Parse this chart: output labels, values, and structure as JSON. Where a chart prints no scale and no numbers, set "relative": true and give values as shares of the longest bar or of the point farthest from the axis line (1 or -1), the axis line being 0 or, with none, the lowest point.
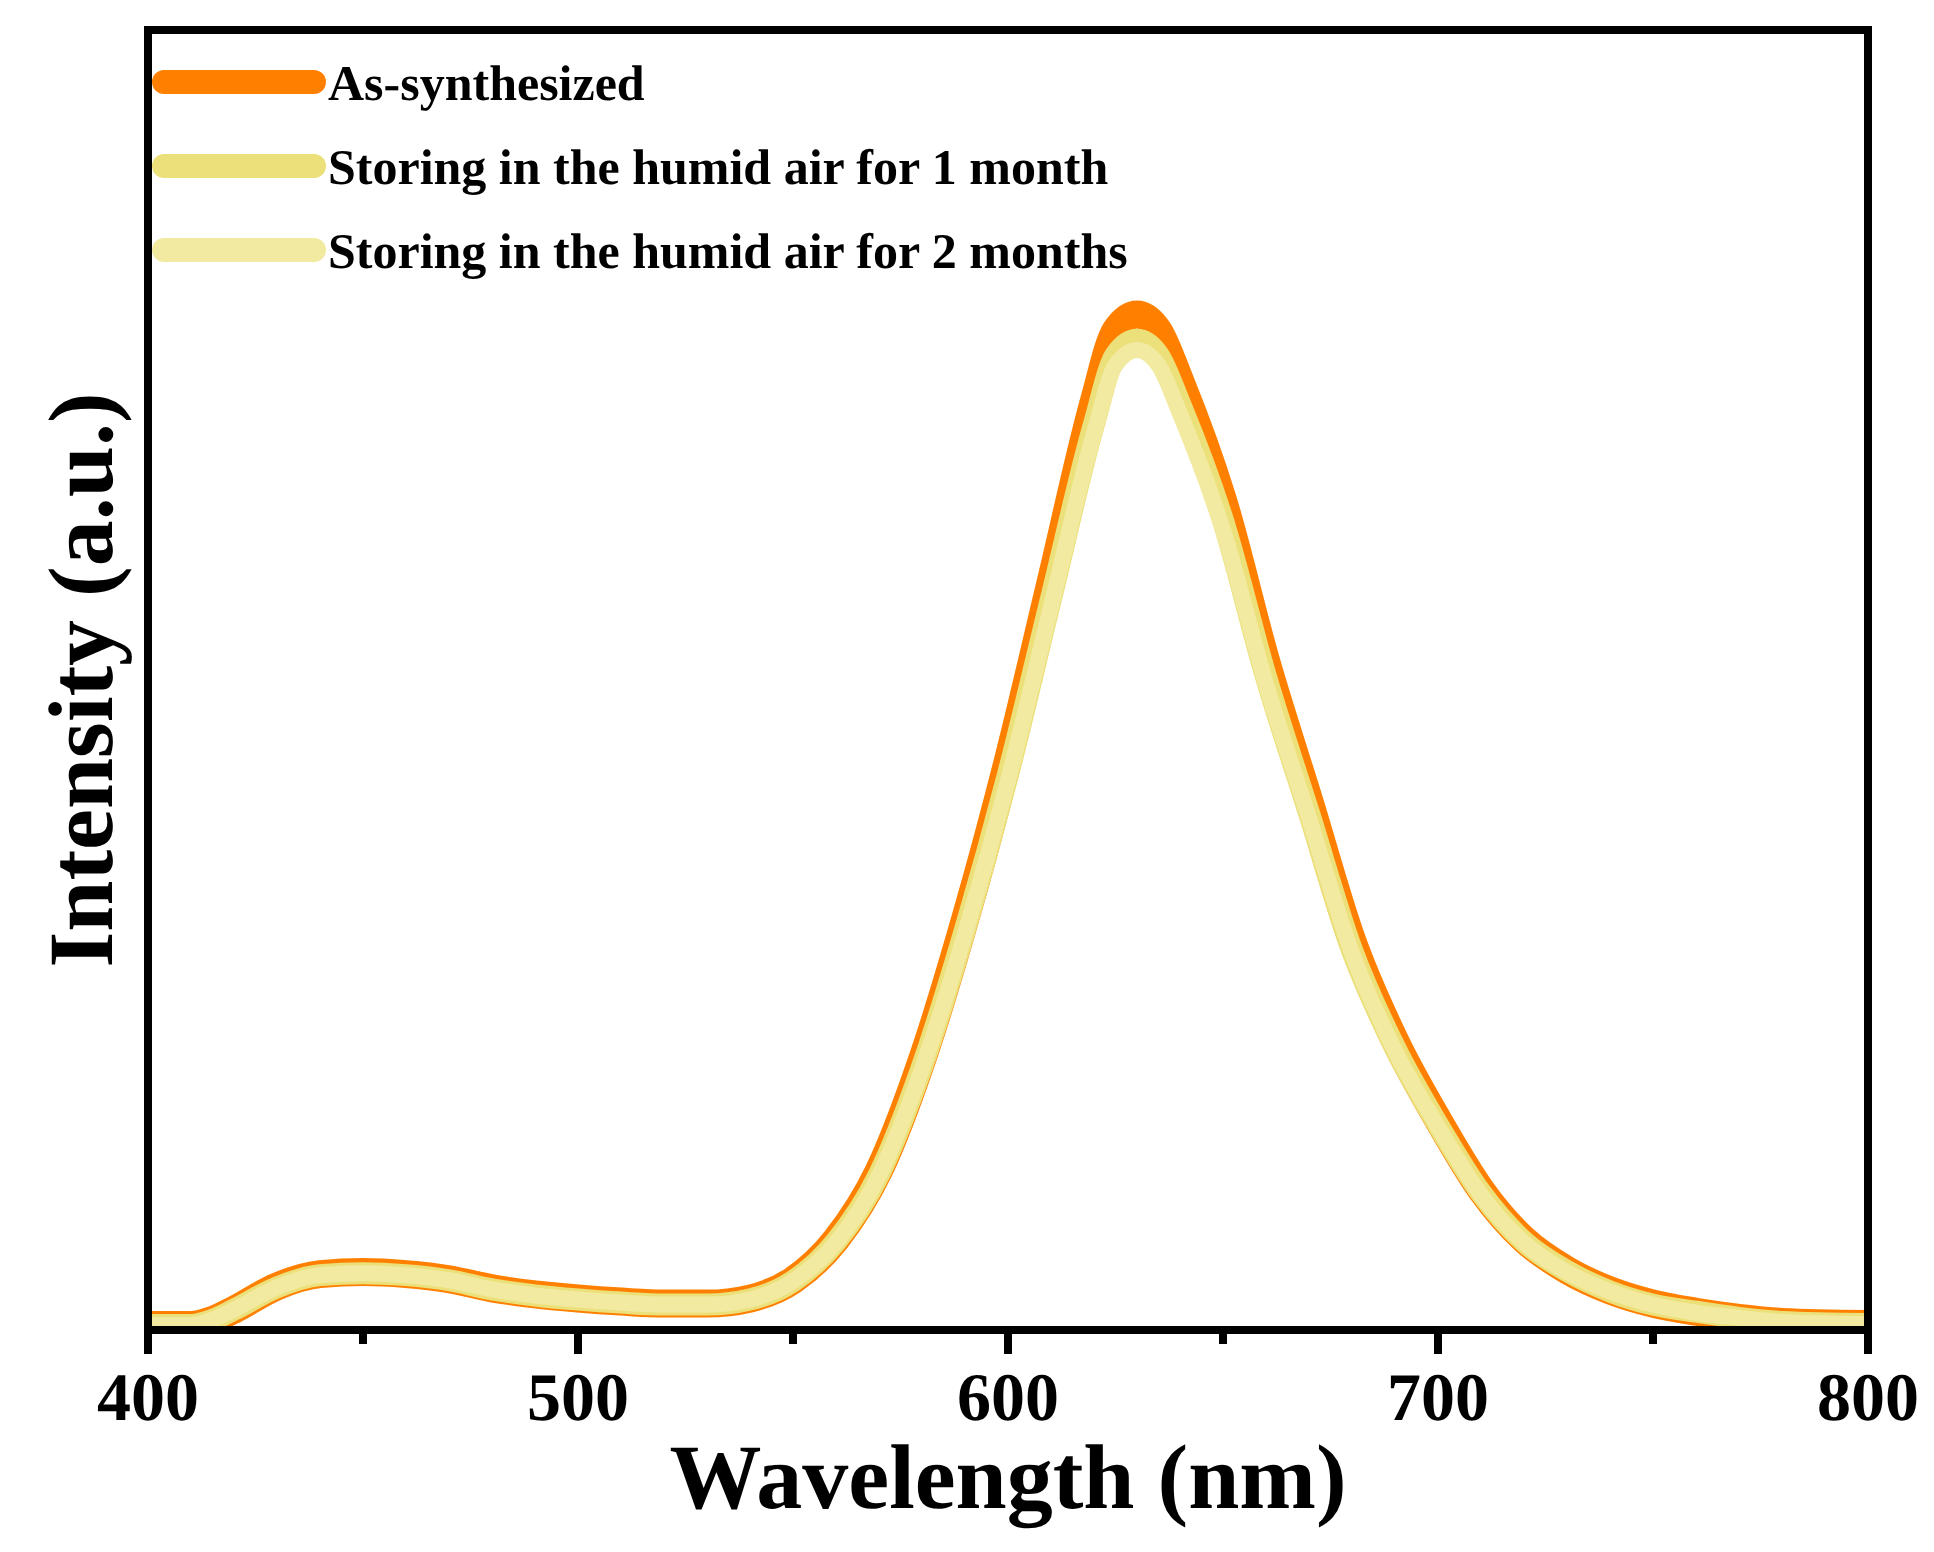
{
  "chart_data": {
    "type": "line",
    "relative": true,
    "xlabel": "Wavelength (nm)",
    "ylabel": "Intensity (a.u.)",
    "xlim": [
      400,
      800
    ],
    "xticks": [
      400,
      500,
      600,
      700,
      800
    ],
    "legend": "top left",
    "line_style": "solid",
    "x": [
      400,
      410,
      415,
      420,
      430,
      440,
      450,
      460,
      470,
      480,
      490,
      500,
      510,
      520,
      530,
      540,
      550,
      560,
      570,
      580,
      590,
      600,
      610,
      620,
      625,
      630,
      635,
      640,
      650,
      660,
      670,
      680,
      690,
      700,
      710,
      720,
      730,
      740,
      750,
      760,
      770,
      780,
      800
    ],
    "series": [
      {
        "name": "As-synthesized",
        "color": "#ff8000",
        "values": [
          0.005,
          0.005,
          0.01,
          0.02,
          0.043,
          0.055,
          0.057,
          0.055,
          0.05,
          0.041,
          0.035,
          0.031,
          0.028,
          0.026,
          0.026,
          0.031,
          0.049,
          0.089,
          0.157,
          0.266,
          0.404,
          0.561,
          0.738,
          0.915,
          0.984,
          1,
          0.984,
          0.935,
          0.817,
          0.659,
          0.522,
          0.384,
          0.285,
          0.207,
          0.138,
          0.089,
          0.059,
          0.039,
          0.026,
          0.018,
          0.012,
          0.008,
          0.006
        ]
      },
      {
        "name": "Storing in the humid air for 1 month",
        "color": "#ebe07a",
        "values": [
          0.005,
          0.005,
          0.01,
          0.02,
          0.042,
          0.054,
          0.056,
          0.054,
          0.049,
          0.04,
          0.034,
          0.03,
          0.027,
          0.025,
          0.025,
          0.03,
          0.048,
          0.087,
          0.153,
          0.259,
          0.394,
          0.547,
          0.72,
          0.892,
          0.96,
          0.975,
          0.96,
          0.912,
          0.797,
          0.643,
          0.509,
          0.374,
          0.278,
          0.202,
          0.135,
          0.087,
          0.058,
          0.038,
          0.025,
          0.018,
          0.012,
          0.008,
          0.006
        ]
      },
      {
        "name": "Storing in the humid air for 2 months",
        "color": "#f2eaa0",
        "values": [
          0.005,
          0.005,
          0.01,
          0.02,
          0.042,
          0.054,
          0.056,
          0.054,
          0.049,
          0.04,
          0.034,
          0.03,
          0.027,
          0.025,
          0.025,
          0.03,
          0.048,
          0.086,
          0.152,
          0.257,
          0.39,
          0.541,
          0.712,
          0.883,
          0.95,
          0.965,
          0.95,
          0.902,
          0.788,
          0.636,
          0.504,
          0.371,
          0.275,
          0.2,
          0.133,
          0.086,
          0.057,
          0.038,
          0.025,
          0.017,
          0.012,
          0.008,
          0.006
        ]
      }
    ]
  }
}
